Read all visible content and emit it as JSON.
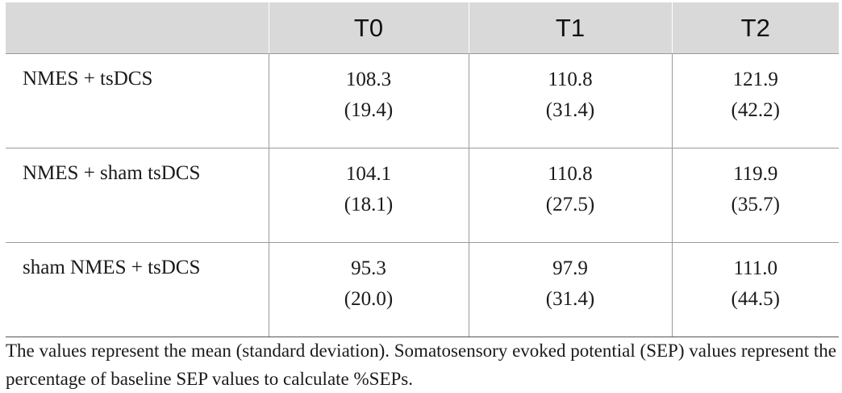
{
  "table": {
    "header": {
      "corner": "",
      "columns": [
        "T0",
        "T1",
        "T2"
      ]
    },
    "rows": [
      {
        "label": "NMES + tsDCS",
        "cells": [
          {
            "mean": "108.3",
            "sd": "(19.4)"
          },
          {
            "mean": "110.8",
            "sd": "(31.4)"
          },
          {
            "mean": "121.9",
            "sd": "(42.2)"
          }
        ]
      },
      {
        "label": "NMES + sham tsDCS",
        "cells": [
          {
            "mean": "104.1",
            "sd": "(18.1)"
          },
          {
            "mean": "110.8",
            "sd": "(27.5)"
          },
          {
            "mean": "119.9",
            "sd": "(35.7)"
          }
        ]
      },
      {
        "label": "sham NMES + tsDCS",
        "cells": [
          {
            "mean": "95.3",
            "sd": "(20.0)"
          },
          {
            "mean": "97.9",
            "sd": "(31.4)"
          },
          {
            "mean": "111.0",
            "sd": "(44.5)"
          }
        ]
      }
    ]
  },
  "footnote": "The values represent the mean (standard deviation). Somatosensory evoked potential (SEP) values represent the percentage of baseline SEP values to calculate %SEPs.",
  "colors": {
    "header_bg": "#d9d9d9",
    "rule": "#9a9a9a"
  }
}
